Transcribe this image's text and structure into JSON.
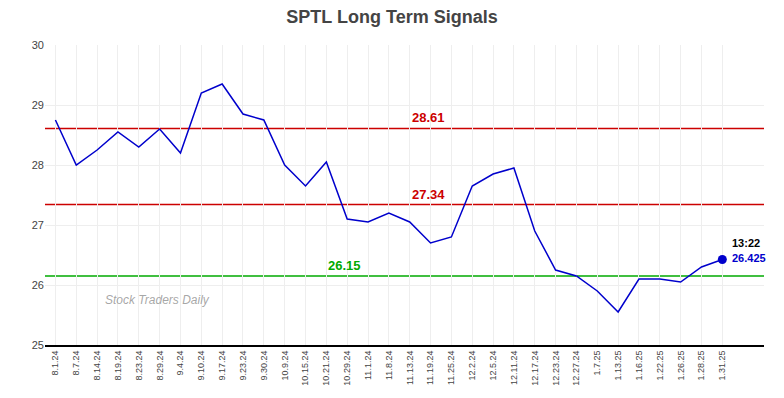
{
  "chart_data": {
    "type": "line",
    "title": "SPTL Long Term Signals",
    "categories": [
      "8.1.24",
      "8.7.24",
      "8.14.24",
      "8.19.24",
      "8.23.24",
      "8.29.24",
      "9.4.24",
      "9.10.24",
      "9.17.24",
      "9.23.24",
      "9.30.24",
      "10.9.24",
      "10.15.24",
      "10.21.24",
      "10.29.24",
      "11.1.24",
      "11.8.24",
      "11.13.24",
      "11.19.24",
      "11.25.24",
      "12.2.24",
      "12.5.24",
      "12.11.24",
      "12.17.24",
      "12.23.24",
      "12.27.24",
      "1.7.25",
      "1.13.25",
      "1.16.25",
      "1.22.25",
      "1.26.25",
      "1.28.25",
      "1.31.25"
    ],
    "values": [
      28.75,
      28.0,
      28.25,
      28.55,
      28.3,
      28.6,
      28.2,
      29.2,
      29.35,
      28.85,
      28.75,
      28.0,
      27.65,
      28.05,
      27.1,
      27.05,
      27.2,
      27.05,
      26.7,
      26.8,
      27.65,
      27.85,
      27.95,
      26.9,
      26.25,
      26.15,
      25.9,
      25.55,
      26.1,
      26.1,
      26.05,
      26.3,
      26.425
    ],
    "color": "#0000cc",
    "ylim": [
      25,
      30
    ],
    "yticks": [
      25,
      26,
      27,
      28,
      29,
      30
    ],
    "grid": true,
    "hlines": [
      {
        "value": 28.61,
        "color": "#cc0000"
      },
      {
        "value": 27.34,
        "color": "#cc0000"
      },
      {
        "value": 26.15,
        "color": "#00aa00"
      }
    ],
    "last_point": {
      "label": "13:22",
      "value": 26.425,
      "color": "#0000cc"
    },
    "annotations": [
      "Stock Traders Daily"
    ]
  }
}
